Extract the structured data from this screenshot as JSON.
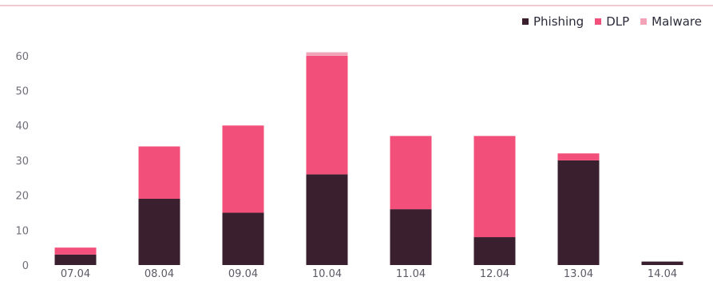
{
  "chart_data": {
    "type": "bar",
    "stacked": true,
    "categories": [
      "07.04",
      "08.04",
      "09.04",
      "10.04",
      "11.04",
      "12.04",
      "13.04",
      "14.04"
    ],
    "series": [
      {
        "name": "Phishing",
        "color": "#3a1f2e",
        "values": [
          3,
          19,
          15,
          26,
          16,
          8,
          30,
          1
        ]
      },
      {
        "name": "DLP",
        "color": "#f2507a",
        "values": [
          2,
          15,
          25,
          34,
          21,
          29,
          2,
          0
        ]
      },
      {
        "name": "Malware",
        "color": "#f2a3b8",
        "values": [
          0,
          0,
          0,
          1,
          0,
          0,
          0,
          0
        ]
      }
    ],
    "ylim": [
      0,
      65
    ],
    "yticks": [
      0,
      10,
      20,
      30,
      40,
      50,
      60
    ],
    "grid": false,
    "legend": "top-right",
    "title": "",
    "xlabel": "",
    "ylabel": ""
  }
}
